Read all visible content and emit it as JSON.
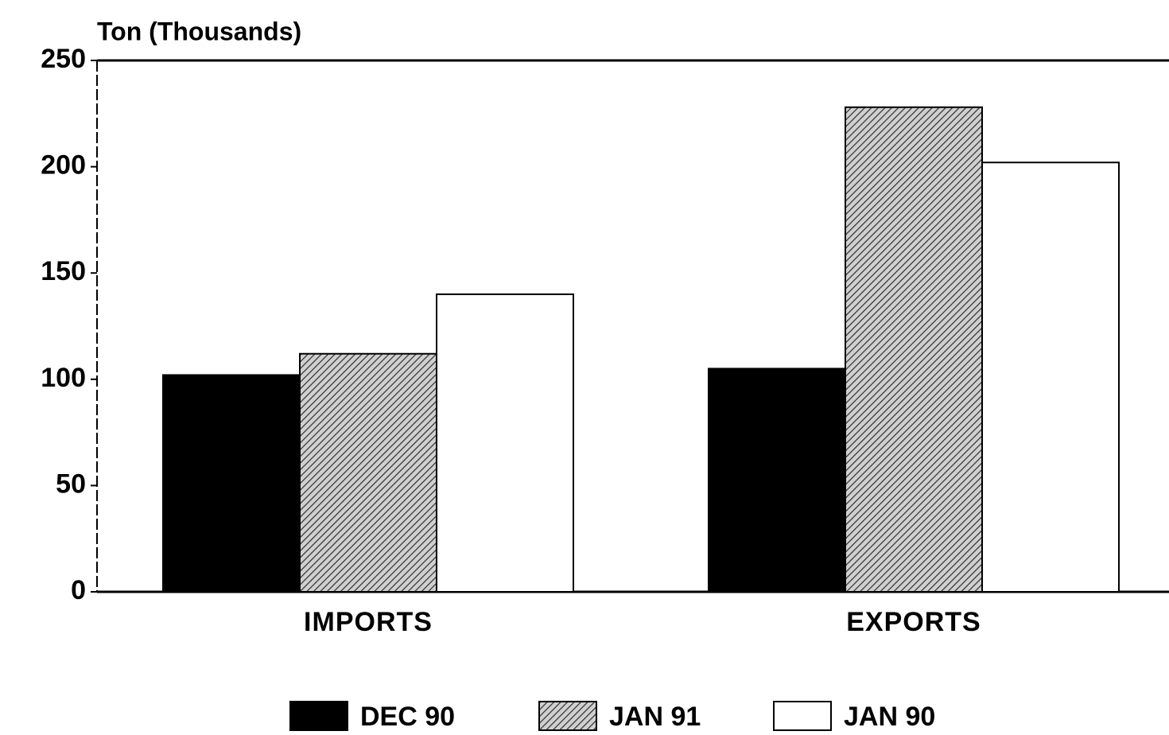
{
  "chart_data": {
    "type": "bar",
    "y_label": "Ton (Thousands)",
    "categories": [
      "IMPORTS",
      "EXPORTS"
    ],
    "series": [
      {
        "name": "DEC 90",
        "color": "#000000",
        "values": [
          102,
          105
        ]
      },
      {
        "name": "JAN 91",
        "color": "#9a9a9a",
        "pattern": "hatch",
        "values": [
          112,
          228
        ]
      },
      {
        "name": "JAN 90",
        "color": "#ffffff",
        "values": [
          140,
          202
        ]
      }
    ],
    "ylim": [
      0,
      250
    ],
    "yticks": [
      0,
      50,
      100,
      150,
      200,
      250
    ],
    "grid": false,
    "legend": "bottom"
  }
}
